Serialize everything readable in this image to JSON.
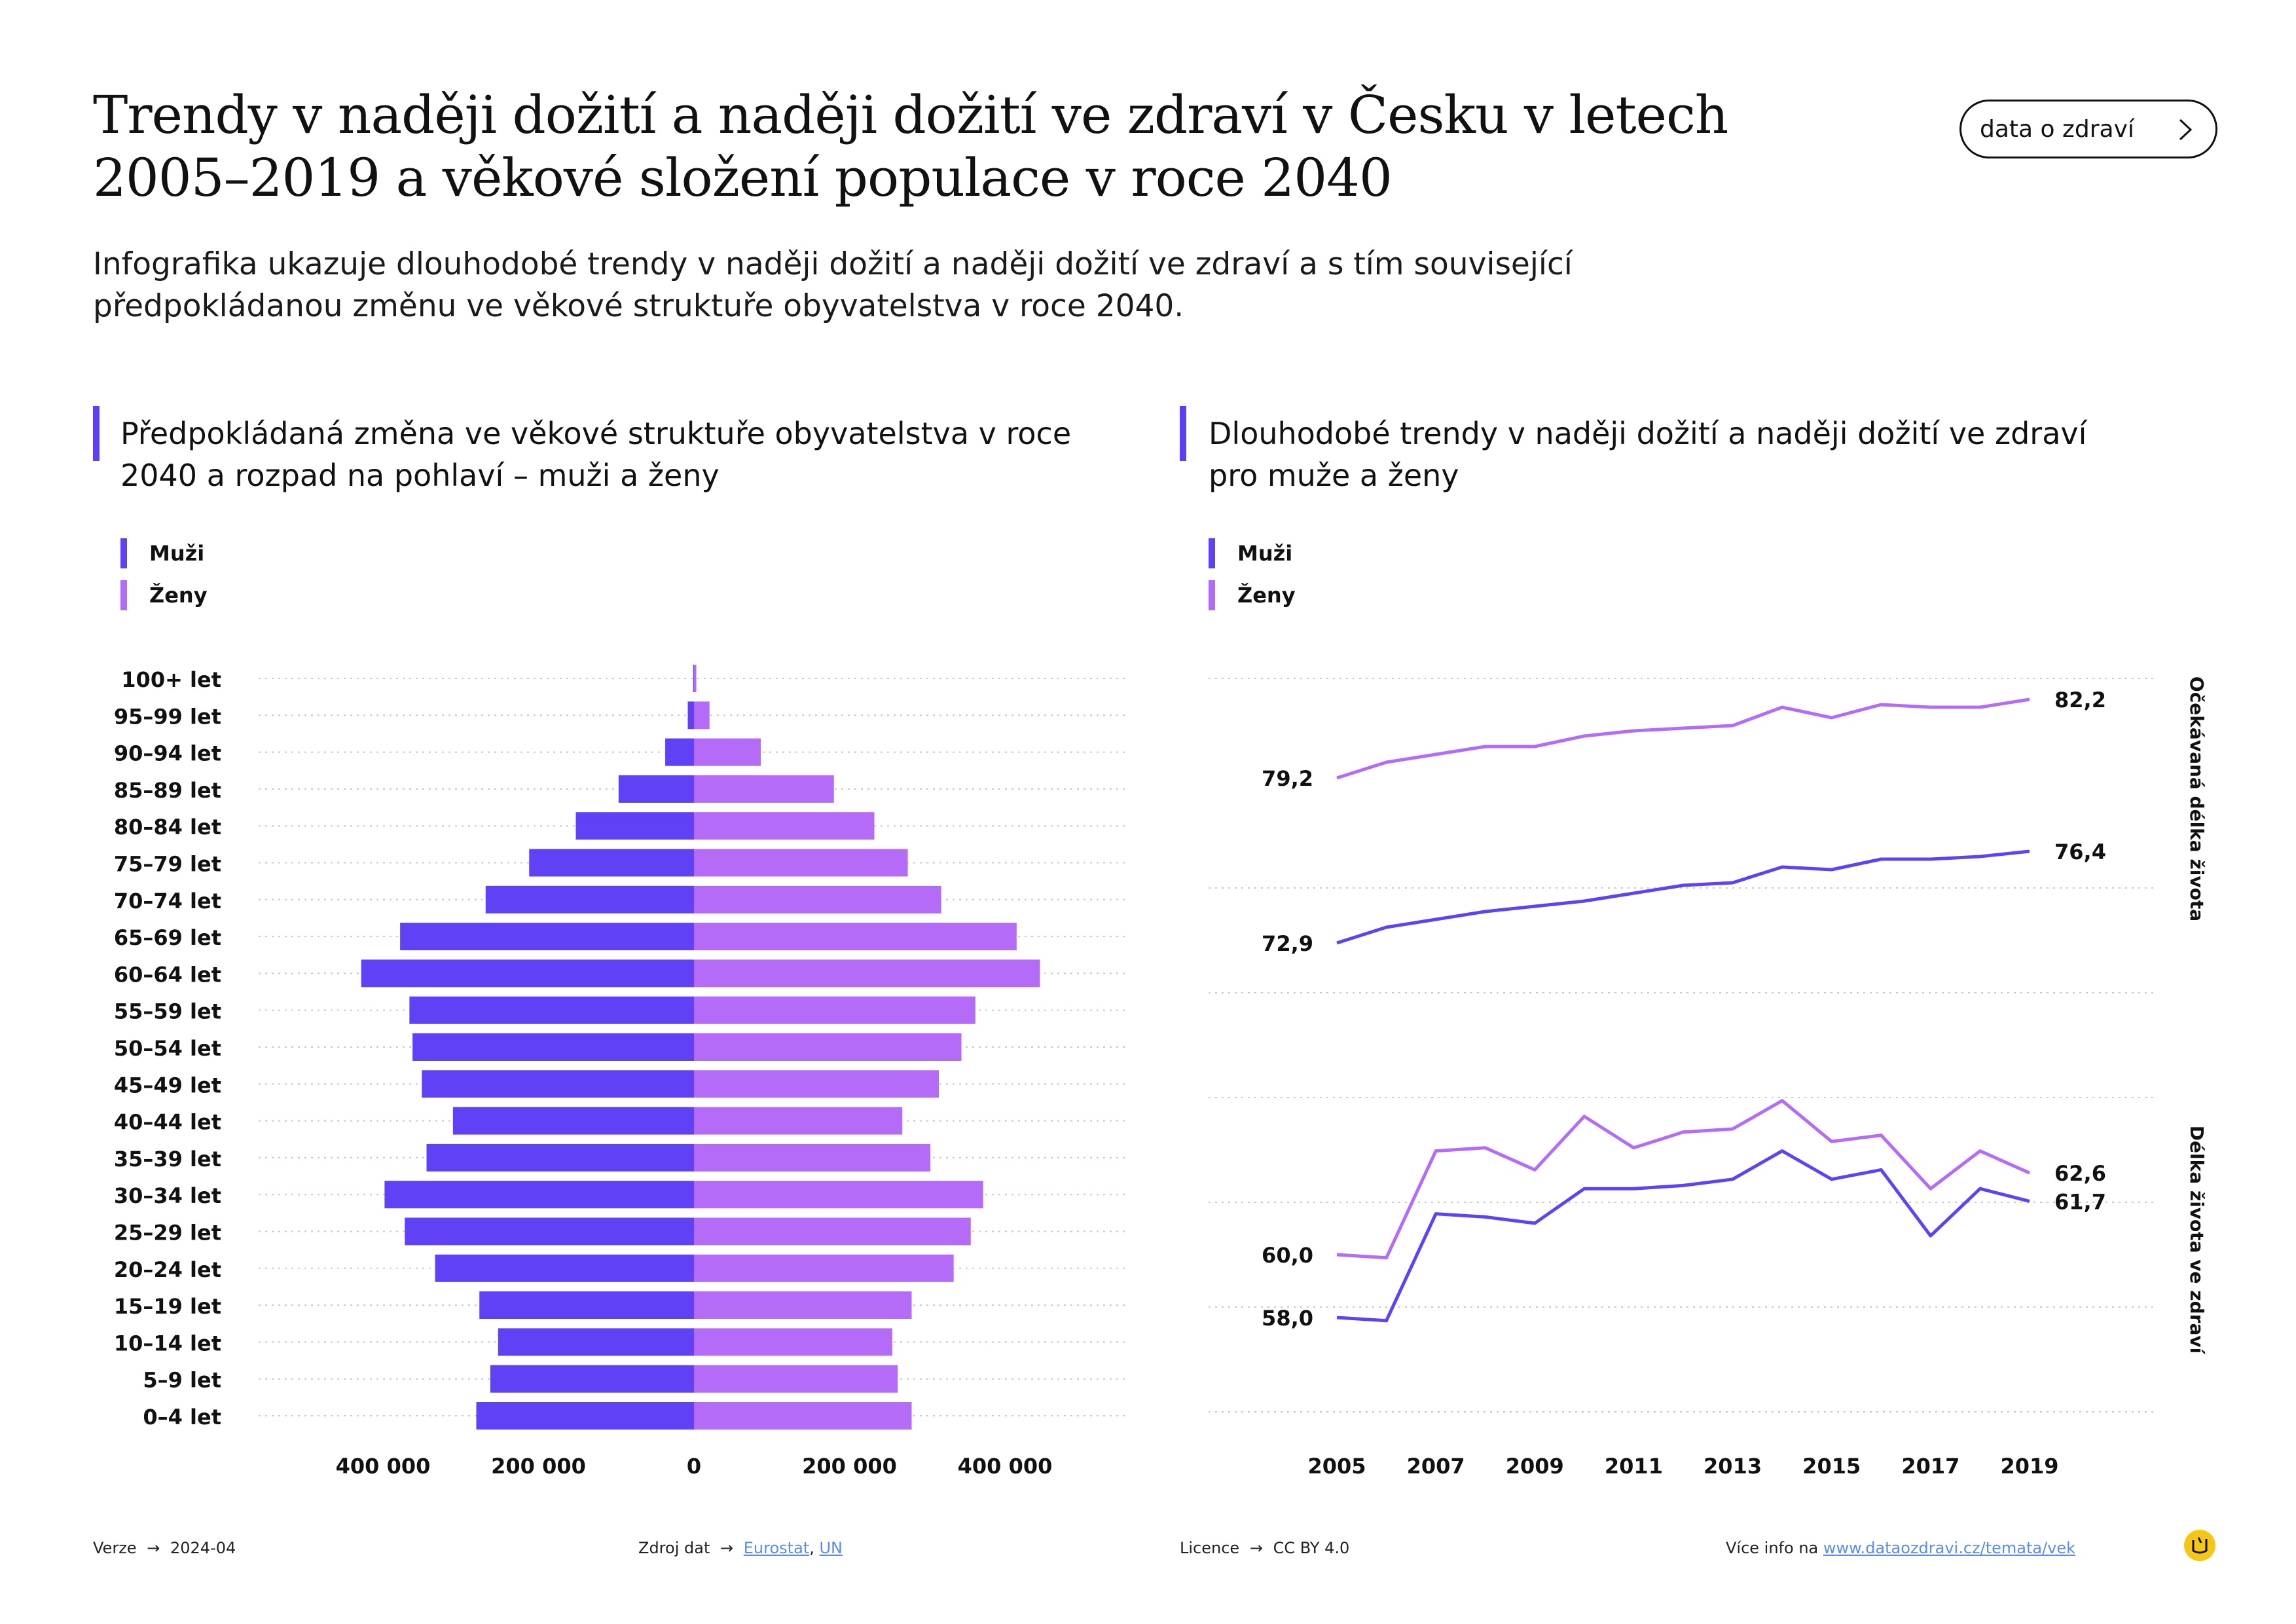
{
  "header": {
    "title": "Trendy v naději dožití a naději dožití ve zdraví v Česku v letech 2005–2019 a věkové složení populace v roce 2040",
    "subtitle": "Infografika ukazuje dlouhodobé trendy v naději dožití a naději dožití ve zdraví a s tím související předpokládanou změnu ve věkové struktuře obyvatelstva v roce 2040.",
    "button_label": "data o zdraví",
    "button_icon": "chevron-right-icon"
  },
  "sections": {
    "left_title": "Předpokládaná změna ve věkové struktuře obyvatelstva v roce 2040 a rozpad na pohlaví – muži a ženy",
    "right_title": "Dlouhodobé trendy v naději dožití a naději dožití ve zdraví pro muže a ženy"
  },
  "legend": {
    "men": "Muži",
    "women": "Ženy"
  },
  "colors": {
    "men": "#6041f5",
    "women": "#b46cf8",
    "accent": "#5f3ff5",
    "grid": "#c8c8c8"
  },
  "footer": {
    "version_label": "Verze",
    "version_value": "2024-04",
    "source_label": "Zdroj dat",
    "source_link1": "Eurostat",
    "source_sep": ",",
    "source_link2": "UN",
    "license_label": "Licence",
    "license_value": "CC BY 4.0",
    "info_label": "Více info na",
    "info_link": "www.dataozdravi.cz/temata/vek",
    "arrow": "→"
  },
  "chart_data": [
    {
      "type": "bar",
      "orientation": "horizontal",
      "categories": [
        "100+ let",
        "95–99 let",
        "90–94 let",
        "85–89 let",
        "80–84 let",
        "75–79 let",
        "70–74 let",
        "65–69 let",
        "60–64 let",
        "55–59 let",
        "50–54 let",
        "45–49 let",
        "40–44 let",
        "35–39 let",
        "30–34 let",
        "25–29 let",
        "20–24 let",
        "15–19 let",
        "10–14 let",
        "5–9 let",
        "0–4 let"
      ],
      "series": [
        {
          "name": "Muži",
          "values": [
            1000,
            8000,
            37000,
            97000,
            152000,
            212000,
            268000,
            378000,
            428000,
            366000,
            362000,
            350000,
            310000,
            344000,
            398000,
            372000,
            333000,
            276000,
            252000,
            262000,
            280000
          ]
        },
        {
          "name": "Ženy",
          "values": [
            3000,
            20000,
            86000,
            180000,
            232000,
            275000,
            318000,
            415000,
            445000,
            362000,
            344000,
            315000,
            268000,
            304000,
            372000,
            356000,
            334000,
            280000,
            255000,
            262000,
            280000
          ]
        }
      ],
      "xtick_labels": [
        "400 000",
        "200 000",
        "0",
        "200 000",
        "400 000"
      ],
      "xticks": [
        -400000,
        -200000,
        0,
        200000,
        400000
      ],
      "xlim": [
        -560000,
        560000
      ]
    },
    {
      "type": "line",
      "x": [
        2005,
        2006,
        2007,
        2008,
        2009,
        2010,
        2011,
        2012,
        2013,
        2014,
        2015,
        2016,
        2017,
        2018,
        2019
      ],
      "xtick_labels": [
        "2005",
        "2007",
        "2009",
        "2011",
        "2013",
        "2015",
        "2017",
        "2019"
      ],
      "panels": [
        {
          "ylabel": "Očekávaná délka života",
          "ylim": [
            71,
            83
          ],
          "series": [
            {
              "name": "Ženy",
              "values": [
                79.2,
                79.8,
                80.1,
                80.4,
                80.4,
                80.8,
                81.0,
                81.1,
                81.2,
                81.9,
                81.5,
                82.0,
                81.9,
                81.9,
                82.2
              ]
            },
            {
              "name": "Muži",
              "values": [
                72.9,
                73.5,
                73.8,
                74.1,
                74.3,
                74.5,
                74.8,
                75.1,
                75.2,
                75.8,
                75.7,
                76.1,
                76.1,
                76.2,
                76.4
              ]
            }
          ],
          "start_labels": [
            "79,2",
            "72,9"
          ],
          "end_labels": [
            "82,2",
            "76,4"
          ]
        },
        {
          "ylabel": "Délka života ve zdraví",
          "ylim": [
            55,
            65
          ],
          "series": [
            {
              "name": "Ženy",
              "values": [
                60.0,
                59.9,
                63.3,
                63.4,
                62.7,
                64.4,
                63.4,
                63.9,
                64.0,
                64.9,
                63.6,
                63.8,
                62.1,
                63.3,
                62.6
              ]
            },
            {
              "name": "Muži",
              "values": [
                58.0,
                57.9,
                61.3,
                61.2,
                61.0,
                62.1,
                62.1,
                62.2,
                62.4,
                63.3,
                62.4,
                62.7,
                60.6,
                62.1,
                61.7
              ]
            }
          ],
          "start_labels": [
            "60,0",
            "58,0"
          ],
          "end_labels": [
            "62,6",
            "61,7"
          ]
        }
      ]
    }
  ]
}
